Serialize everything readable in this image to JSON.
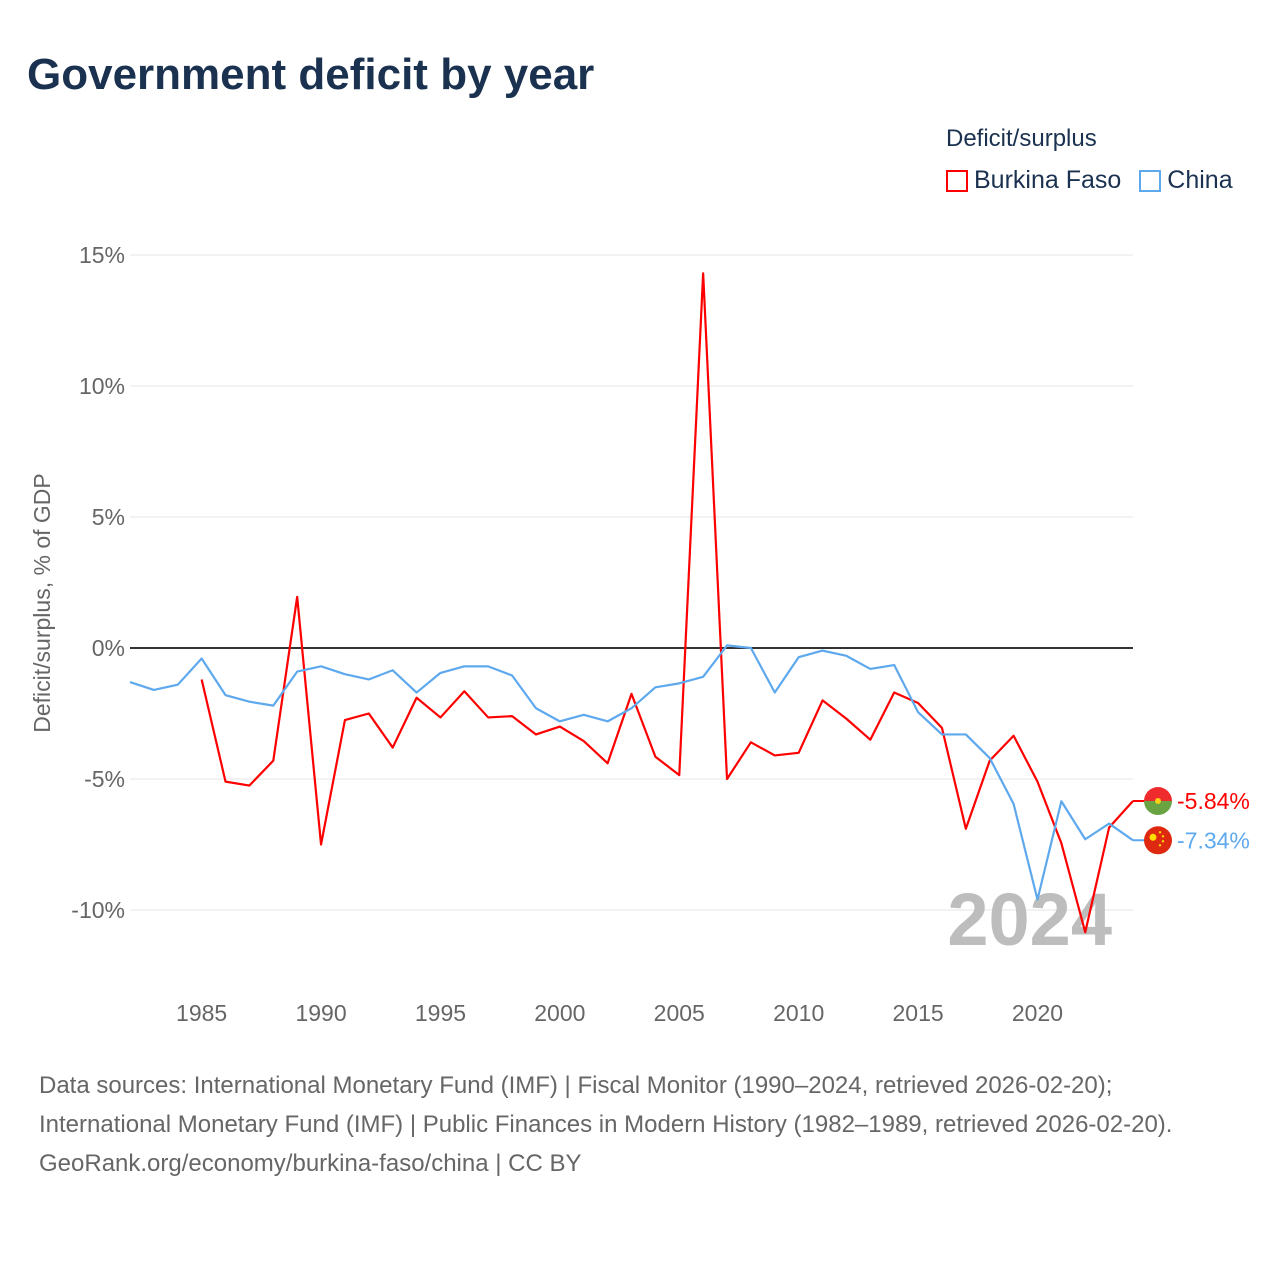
{
  "title": "Government deficit by year",
  "legend_title": "Deficit/surplus",
  "footer": {
    "sources": "Data sources: International Monetary Fund (IMF) | Fiscal Monitor (1990–2024, retrieved 2026-02-20); International Monetary Fund (IMF) | Public Finances in Modern History (1982–1989, retrieved 2026-02-20).",
    "credit": "GeoRank.org/economy/burkina-faso/china | CC BY"
  },
  "chart_data": {
    "type": "line",
    "title": "Government deficit by year",
    "ylabel": "Deficit/surplus, % of GDP",
    "xlabel": "",
    "xlim": [
      1982,
      2024
    ],
    "ylim": [
      -12.5,
      15.5
    ],
    "yticks": [
      15,
      10,
      5,
      0,
      -5,
      -10
    ],
    "ytick_labels": [
      "15%",
      "10%",
      "5%",
      "0%",
      "-5%",
      "-10%"
    ],
    "xticks": [
      1985,
      1990,
      1995,
      2000,
      2005,
      2010,
      2015,
      2020
    ],
    "xtick_labels": [
      "1985",
      "1990",
      "1995",
      "2000",
      "2005",
      "2010",
      "2015",
      "2020"
    ],
    "year_label": "2024",
    "legend_position": "top-right",
    "series": [
      {
        "name": "Burkina Faso",
        "color": "#ff0000",
        "end_label": "-5.84%",
        "x": [
          1985,
          1986,
          1987,
          1988,
          1989,
          1990,
          1991,
          1992,
          1993,
          1994,
          1995,
          1996,
          1997,
          1998,
          1999,
          2000,
          2001,
          2002,
          2003,
          2004,
          2005,
          2006,
          2007,
          2008,
          2009,
          2010,
          2011,
          2012,
          2013,
          2014,
          2015,
          2016,
          2017,
          2018,
          2019,
          2020,
          2021,
          2022,
          2023,
          2024
        ],
        "values": [
          -1.2,
          -5.1,
          -5.25,
          -4.3,
          1.95,
          -7.5,
          -2.75,
          -2.5,
          -3.8,
          -1.9,
          -2.65,
          -1.65,
          -2.65,
          -2.6,
          -3.3,
          -3.0,
          -3.55,
          -4.4,
          -1.75,
          -4.15,
          -4.85,
          14.3,
          -5.0,
          -3.6,
          -4.1,
          -4.0,
          -2.0,
          -2.7,
          -3.5,
          -1.7,
          -2.1,
          -3.05,
          -6.9,
          -4.3,
          -3.35,
          -5.1,
          -7.45,
          -10.85,
          -6.85,
          -5.84
        ]
      },
      {
        "name": "China",
        "color": "#5ea9ee",
        "end_label": "-7.34%",
        "x": [
          1982,
          1983,
          1984,
          1985,
          1986,
          1987,
          1988,
          1989,
          1990,
          1991,
          1992,
          1993,
          1994,
          1995,
          1996,
          1997,
          1998,
          1999,
          2000,
          2001,
          2002,
          2003,
          2004,
          2005,
          2006,
          2007,
          2008,
          2009,
          2010,
          2011,
          2012,
          2013,
          2014,
          2015,
          2016,
          2017,
          2018,
          2019,
          2020,
          2021,
          2022,
          2023,
          2024
        ],
        "values": [
          -1.3,
          -1.6,
          -1.4,
          -0.4,
          -1.8,
          -2.05,
          -2.2,
          -0.9,
          -0.7,
          -1.0,
          -1.2,
          -0.85,
          -1.7,
          -0.95,
          -0.7,
          -0.7,
          -1.05,
          -2.3,
          -2.8,
          -2.55,
          -2.8,
          -2.3,
          -1.5,
          -1.35,
          -1.1,
          0.1,
          0.0,
          -1.7,
          -0.35,
          -0.1,
          -0.3,
          -0.8,
          -0.65,
          -2.45,
          -3.3,
          -3.3,
          -4.2,
          -5.95,
          -9.6,
          -5.85,
          -7.3,
          -6.7,
          -7.34
        ]
      }
    ]
  }
}
